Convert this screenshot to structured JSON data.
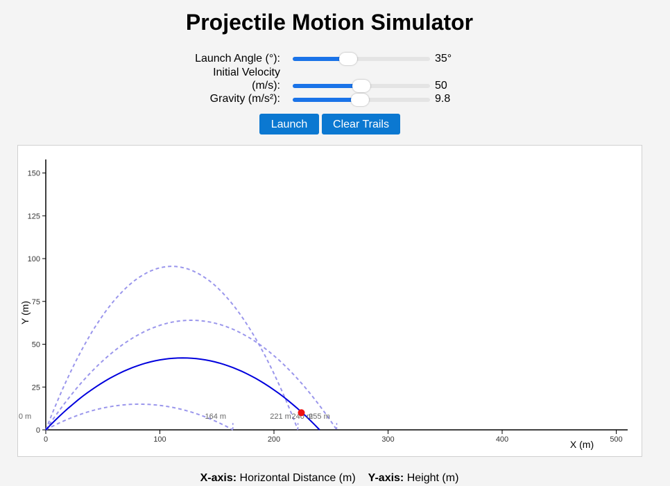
{
  "page": {
    "title": "Projectile Motion Simulator"
  },
  "controls": {
    "angle": {
      "label": "Launch Angle (°):",
      "value": 35,
      "display": "35°",
      "min": 0,
      "max": 90
    },
    "velocity": {
      "label_line1": "Initial Velocity",
      "label_line2": "(m/s):",
      "value": 50,
      "display": "50",
      "min": 0,
      "max": 100
    },
    "gravity": {
      "label": "Gravity (m/s²):",
      "value": 9.8,
      "display": "9.8",
      "min": 0,
      "max": 20
    }
  },
  "buttons": {
    "launch": "Launch",
    "clear_trails": "Clear Trails"
  },
  "colors": {
    "accent": "#0b78d1",
    "current_path": "#0000dd",
    "trail": "#9a96ec",
    "projectile": "#ee1111"
  },
  "chart_data": {
    "type": "line",
    "xlabel": "X (m)",
    "ylabel": "Y (m)",
    "xlim": [
      0,
      510
    ],
    "ylim": [
      0,
      158
    ],
    "x_ticks": [
      0,
      100,
      200,
      300,
      400,
      500
    ],
    "y_ticks": [
      0,
      25,
      50,
      75,
      100,
      125,
      150
    ],
    "trails": [
      {
        "range": 164,
        "peak": 15,
        "label": "164 m"
      },
      {
        "range": 221,
        "peak": 95.5,
        "label": "221 m"
      },
      {
        "range": 255,
        "peak": 64,
        "label": "255 m"
      }
    ],
    "current": {
      "range": 240,
      "peak": 42,
      "label": "240 m"
    },
    "projectile": {
      "x": 224,
      "y": 10
    },
    "origin_label": "0 m"
  },
  "footer": {
    "x_key": "X-axis:",
    "x_text": " Horizontal Distance (m)",
    "y_key": "Y-axis:",
    "y_text": " Height (m)"
  }
}
